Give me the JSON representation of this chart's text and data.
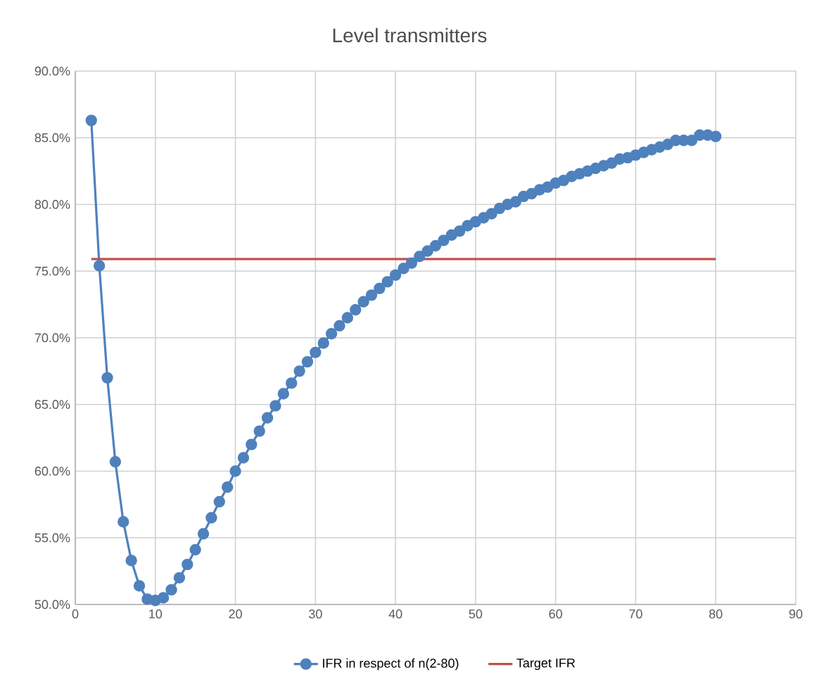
{
  "chart_data": {
    "type": "line",
    "title": "Level transmitters",
    "xlim": [
      0,
      90
    ],
    "xticks": [
      0,
      10,
      20,
      30,
      40,
      50,
      60,
      70,
      80,
      90
    ],
    "ylim": [
      50,
      90
    ],
    "yticks": [
      {
        "value": 50,
        "label": "50.0%"
      },
      {
        "value": 55,
        "label": "55.0%"
      },
      {
        "value": 60,
        "label": "60.0%"
      },
      {
        "value": 65,
        "label": "65.0%"
      },
      {
        "value": 70,
        "label": "70.0%"
      },
      {
        "value": 75,
        "label": "75.0%"
      },
      {
        "value": 80,
        "label": "80.0%"
      },
      {
        "value": 85,
        "label": "85.0%"
      },
      {
        "value": 90,
        "label": "90.0%"
      }
    ],
    "grid": true,
    "legend": "bottom",
    "line_style": "solid",
    "series": [
      {
        "name": "IFR in respect of n(2-80)",
        "color": "#4f81bd",
        "marker": "circle",
        "x": [
          2,
          3,
          4,
          5,
          6,
          7,
          8,
          9,
          10,
          11,
          12,
          13,
          14,
          15,
          16,
          17,
          18,
          19,
          20,
          21,
          22,
          23,
          24,
          25,
          26,
          27,
          28,
          29,
          30,
          31,
          32,
          33,
          34,
          35,
          36,
          37,
          38,
          39,
          40,
          41,
          42,
          43,
          44,
          45,
          46,
          47,
          48,
          49,
          50,
          51,
          52,
          53,
          54,
          55,
          56,
          57,
          58,
          59,
          60,
          61,
          62,
          63,
          64,
          65,
          66,
          67,
          68,
          69,
          70,
          71,
          72,
          73,
          74,
          75,
          76,
          77,
          78,
          79,
          80
        ],
        "values": [
          86.3,
          75.4,
          67.0,
          60.7,
          56.2,
          53.3,
          51.4,
          50.4,
          50.3,
          50.5,
          51.1,
          52.0,
          53.0,
          54.1,
          55.3,
          56.5,
          57.7,
          58.8,
          60.0,
          61.0,
          62.0,
          63.0,
          64.0,
          64.9,
          65.8,
          66.6,
          67.5,
          68.2,
          68.9,
          69.6,
          70.3,
          70.9,
          71.5,
          72.1,
          72.7,
          73.2,
          73.7,
          74.2,
          74.7,
          75.2,
          75.6,
          76.1,
          76.5,
          76.9,
          77.3,
          77.7,
          78.0,
          78.4,
          78.7,
          79.0,
          79.3,
          79.7,
          80.0,
          80.2,
          80.6,
          80.8,
          81.1,
          81.3,
          81.6,
          81.8,
          82.1,
          82.3,
          82.5,
          82.7,
          82.9,
          83.1,
          83.4,
          83.5,
          83.7,
          83.9,
          84.1,
          84.3,
          84.5,
          84.8,
          84.8,
          84.8,
          85.2,
          85.2,
          85.1
        ]
      },
      {
        "name": "Target IFR",
        "color": "#c0504d",
        "marker": "none",
        "x": [
          2,
          80
        ],
        "values": [
          75.9,
          75.9
        ]
      }
    ]
  }
}
